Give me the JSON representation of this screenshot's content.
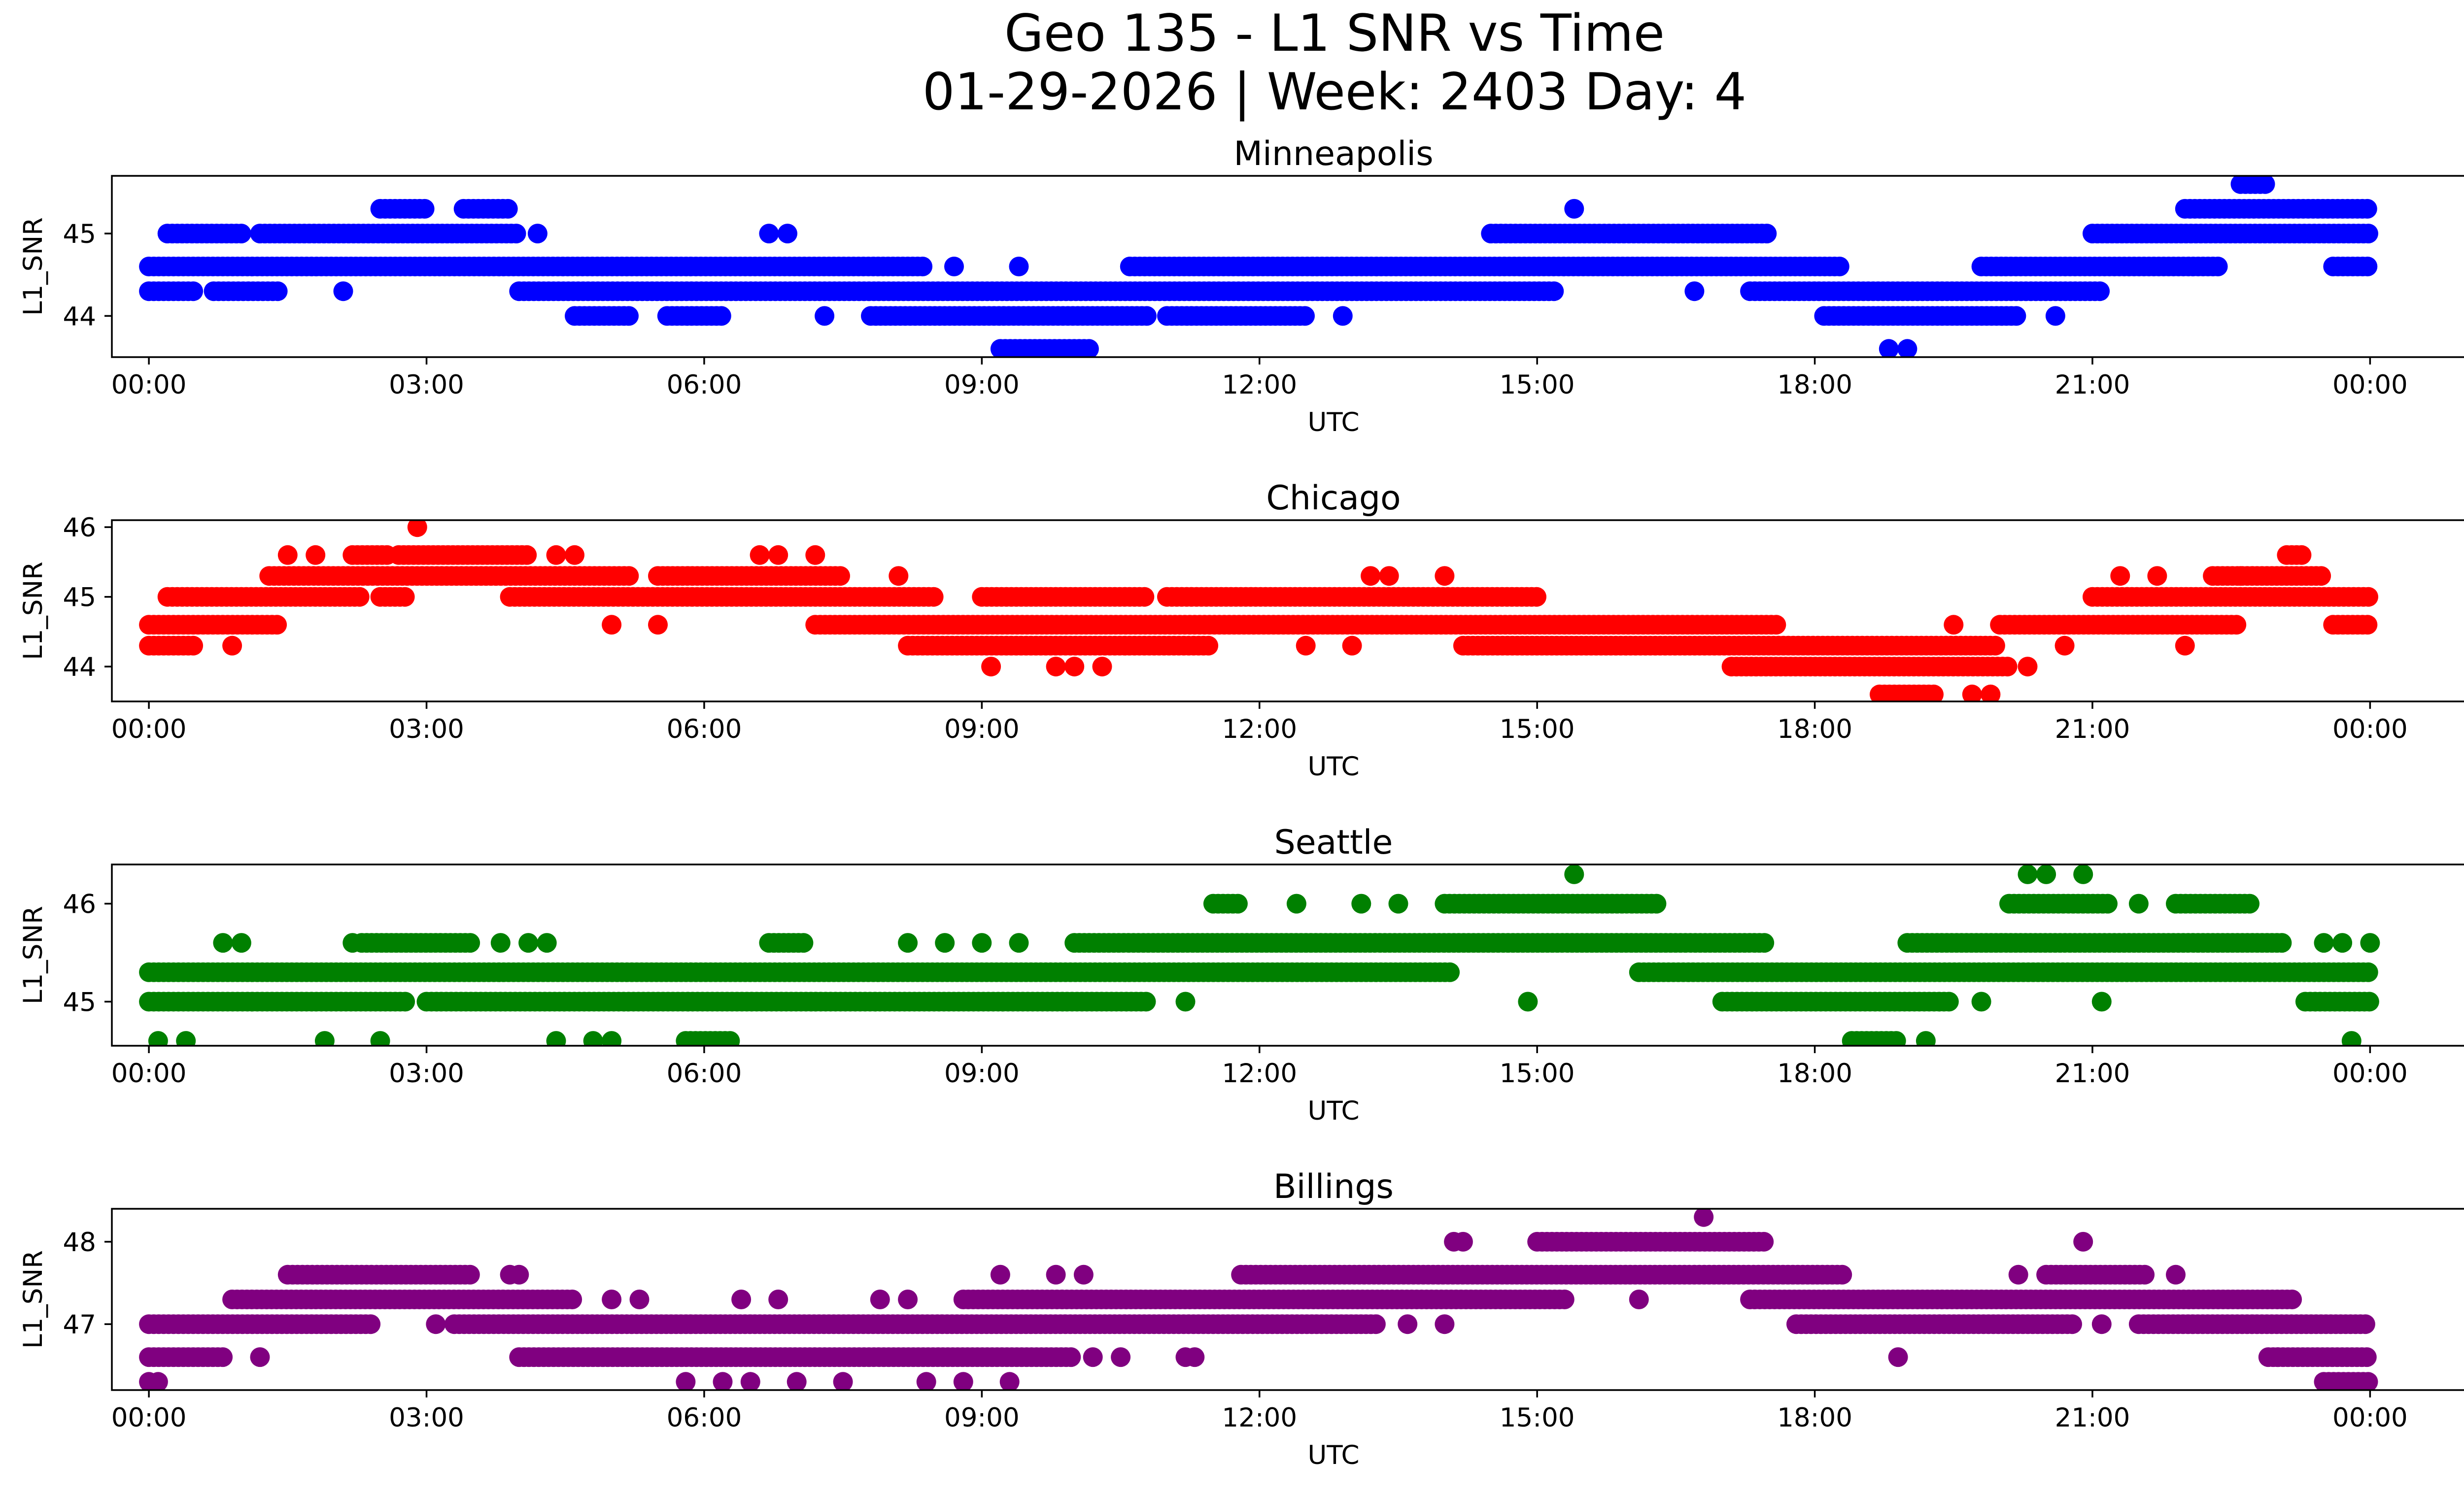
{
  "figure": {
    "title_line1": "Geo 135 - L1 SNR vs Time",
    "title_line2": "01-29-2026 | Week: 2403 Day: 4"
  },
  "x_tick_labels": [
    "00:00",
    "03:00",
    "06:00",
    "09:00",
    "12:00",
    "15:00",
    "18:00",
    "21:00",
    "00:00"
  ],
  "chart_data": [
    {
      "type": "scatter",
      "title": "Minneapolis",
      "xlabel": "UTC",
      "ylabel": "L1_SNR",
      "color": "#0000ff",
      "xlim": [
        -0.4,
        26.0
      ],
      "ylim": [
        43.5,
        45.7
      ],
      "yticks": [
        44,
        45
      ],
      "segments": [
        {
          "y": 44.6,
          "ranges": [
            [
              0.0,
              8.4
            ],
            [
              10.6,
              18.3
            ],
            [
              19.8,
              22.4
            ],
            [
              23.6,
              24.0
            ]
          ]
        },
        {
          "y": 44.3,
          "ranges": [
            [
              0.0,
              0.5
            ],
            [
              0.7,
              1.4
            ],
            [
              4.0,
              15.2
            ],
            [
              17.3,
              21.1
            ]
          ]
        },
        {
          "y": 45.0,
          "ranges": [
            [
              0.2,
              1.0
            ],
            [
              1.2,
              4.0
            ],
            [
              14.5,
              17.5
            ],
            [
              21.0,
              24.0
            ]
          ]
        },
        {
          "y": 44.0,
          "ranges": [
            [
              4.6,
              5.2
            ],
            [
              5.6,
              6.2
            ],
            [
              7.8,
              10.8
            ],
            [
              11.0,
              12.5
            ],
            [
              18.1,
              20.2
            ]
          ]
        },
        {
          "y": 45.3,
          "ranges": [
            [
              2.5,
              3.0
            ],
            [
              3.4,
              3.9
            ],
            [
              22.0,
              24.0
            ]
          ]
        },
        {
          "y": 43.6,
          "ranges": [
            [
              9.2,
              10.2
            ]
          ]
        },
        {
          "y": 45.6,
          "ranges": [
            [
              22.6,
              22.9
            ]
          ]
        }
      ],
      "points": [
        {
          "x": 4.2,
          "y": 45.0
        },
        {
          "x": 6.7,
          "y": 45.0
        },
        {
          "x": 6.9,
          "y": 45.0
        },
        {
          "x": 2.1,
          "y": 44.3
        },
        {
          "x": 16.7,
          "y": 44.3
        },
        {
          "x": 8.7,
          "y": 44.6
        },
        {
          "x": 9.4,
          "y": 44.6
        },
        {
          "x": 7.3,
          "y": 44.0
        },
        {
          "x": 12.9,
          "y": 44.0
        },
        {
          "x": 20.6,
          "y": 44.0
        },
        {
          "x": 15.4,
          "y": 45.3
        },
        {
          "x": 18.8,
          "y": 43.6
        },
        {
          "x": 19.0,
          "y": 43.6
        }
      ]
    },
    {
      "type": "scatter",
      "title": "Chicago",
      "xlabel": "UTC",
      "ylabel": "L1_SNR",
      "color": "#ff0000",
      "xlim": [
        -0.4,
        26.0
      ],
      "ylim": [
        43.5,
        46.1
      ],
      "yticks": [
        44,
        45,
        46
      ],
      "segments": [
        {
          "y": 44.6,
          "ranges": [
            [
              0.0,
              1.4
            ],
            [
              7.2,
              17.6
            ],
            [
              20.0,
              22.6
            ],
            [
              23.6,
              24.0
            ]
          ]
        },
        {
          "y": 44.3,
          "ranges": [
            [
              0.0,
              0.5
            ],
            [
              8.2,
              11.5
            ],
            [
              14.2,
              20.0
            ]
          ]
        },
        {
          "y": 45.0,
          "ranges": [
            [
              0.2,
              2.3
            ],
            [
              2.5,
              2.8
            ],
            [
              3.9,
              8.5
            ],
            [
              9.0,
              10.8
            ],
            [
              11.0,
              15.0
            ],
            [
              21.0,
              24.0
            ]
          ]
        },
        {
          "y": 45.3,
          "ranges": [
            [
              1.3,
              5.2
            ],
            [
              5.5,
              7.5
            ],
            [
              22.3,
              23.5
            ]
          ]
        },
        {
          "y": 45.6,
          "ranges": [
            [
              2.2,
              2.6
            ],
            [
              2.7,
              4.1
            ],
            [
              23.1,
              23.3
            ]
          ]
        },
        {
          "y": 44.0,
          "ranges": [
            [
              17.1,
              20.1
            ]
          ]
        },
        {
          "y": 43.6,
          "ranges": [
            [
              18.7,
              19.3
            ]
          ]
        }
      ],
      "points": [
        {
          "x": 2.9,
          "y": 46.0
        },
        {
          "x": 0.9,
          "y": 44.3
        },
        {
          "x": 1.5,
          "y": 45.6
        },
        {
          "x": 1.8,
          "y": 45.6
        },
        {
          "x": 4.4,
          "y": 45.6
        },
        {
          "x": 4.6,
          "y": 45.6
        },
        {
          "x": 6.6,
          "y": 45.6
        },
        {
          "x": 6.8,
          "y": 45.6
        },
        {
          "x": 7.2,
          "y": 45.6
        },
        {
          "x": 8.1,
          "y": 45.3
        },
        {
          "x": 13.2,
          "y": 45.3
        },
        {
          "x": 13.4,
          "y": 45.3
        },
        {
          "x": 14.0,
          "y": 45.3
        },
        {
          "x": 5.0,
          "y": 44.6
        },
        {
          "x": 5.5,
          "y": 44.6
        },
        {
          "x": 9.1,
          "y": 44.0
        },
        {
          "x": 9.8,
          "y": 44.0
        },
        {
          "x": 10.0,
          "y": 44.0
        },
        {
          "x": 10.3,
          "y": 44.0
        },
        {
          "x": 12.5,
          "y": 44.3
        },
        {
          "x": 13.0,
          "y": 44.3
        },
        {
          "x": 19.5,
          "y": 44.6
        },
        {
          "x": 19.7,
          "y": 43.6
        },
        {
          "x": 19.9,
          "y": 43.6
        },
        {
          "x": 20.3,
          "y": 44.0
        },
        {
          "x": 20.7,
          "y": 44.3
        },
        {
          "x": 21.3,
          "y": 45.3
        },
        {
          "x": 21.7,
          "y": 45.3
        },
        {
          "x": 22.0,
          "y": 44.3
        },
        {
          "x": 22.6,
          "y": 45.3
        }
      ]
    },
    {
      "type": "scatter",
      "title": "Seattle",
      "xlabel": "UTC",
      "ylabel": "L1_SNR",
      "color": "#008000",
      "xlim": [
        -0.4,
        26.0
      ],
      "ylim": [
        44.55,
        46.4
      ],
      "yticks": [
        45,
        46
      ],
      "segments": [
        {
          "y": 45.3,
          "ranges": [
            [
              0.0,
              14.1
            ],
            [
              16.1,
              24.0
            ]
          ]
        },
        {
          "y": 45.0,
          "ranges": [
            [
              0.0,
              2.8
            ],
            [
              3.0,
              10.8
            ],
            [
              17.0,
              19.5
            ],
            [
              23.3,
              24.0
            ]
          ]
        },
        {
          "y": 45.6,
          "ranges": [
            [
              2.3,
              3.5
            ],
            [
              6.7,
              7.1
            ],
            [
              10.0,
              17.5
            ],
            [
              19.0,
              23.1
            ]
          ]
        },
        {
          "y": 46.0,
          "ranges": [
            [
              11.5,
              11.8
            ],
            [
              14.0,
              16.3
            ],
            [
              20.1,
              21.2
            ],
            [
              21.9,
              22.7
            ]
          ]
        },
        {
          "y": 44.6,
          "ranges": [
            [
              5.8,
              6.3
            ],
            [
              18.4,
              18.9
            ]
          ]
        }
      ],
      "points": [
        {
          "x": 0.8,
          "y": 45.6
        },
        {
          "x": 1.0,
          "y": 45.6
        },
        {
          "x": 2.2,
          "y": 45.6
        },
        {
          "x": 3.8,
          "y": 45.6
        },
        {
          "x": 4.1,
          "y": 45.6
        },
        {
          "x": 4.3,
          "y": 45.6
        },
        {
          "x": 8.2,
          "y": 45.6
        },
        {
          "x": 8.6,
          "y": 45.6
        },
        {
          "x": 9.0,
          "y": 45.6
        },
        {
          "x": 9.4,
          "y": 45.6
        },
        {
          "x": 0.1,
          "y": 44.6
        },
        {
          "x": 0.4,
          "y": 44.6
        },
        {
          "x": 1.9,
          "y": 44.6
        },
        {
          "x": 2.5,
          "y": 44.6
        },
        {
          "x": 4.4,
          "y": 44.6
        },
        {
          "x": 4.8,
          "y": 44.6
        },
        {
          "x": 5.0,
          "y": 44.6
        },
        {
          "x": 11.2,
          "y": 45.0
        },
        {
          "x": 14.9,
          "y": 45.0
        },
        {
          "x": 12.4,
          "y": 46.0
        },
        {
          "x": 13.1,
          "y": 46.0
        },
        {
          "x": 13.5,
          "y": 46.0
        },
        {
          "x": 15.4,
          "y": 46.3
        },
        {
          "x": 20.3,
          "y": 46.3
        },
        {
          "x": 20.5,
          "y": 46.3
        },
        {
          "x": 20.9,
          "y": 46.3
        },
        {
          "x": 21.5,
          "y": 46.0
        },
        {
          "x": 19.2,
          "y": 44.6
        },
        {
          "x": 19.8,
          "y": 45.0
        },
        {
          "x": 21.1,
          "y": 45.0
        },
        {
          "x": 23.8,
          "y": 44.6
        },
        {
          "x": 23.5,
          "y": 45.6
        },
        {
          "x": 23.7,
          "y": 45.6
        },
        {
          "x": 24.0,
          "y": 45.6
        }
      ]
    },
    {
      "type": "scatter",
      "title": "Billings",
      "xlabel": "UTC",
      "ylabel": "L1_SNR",
      "color": "#800080",
      "xlim": [
        -0.4,
        26.0
      ],
      "ylim": [
        46.2,
        48.4
      ],
      "yticks": [
        47,
        48
      ],
      "segments": [
        {
          "y": 47.0,
          "ranges": [
            [
              0.0,
              2.4
            ],
            [
              3.3,
              13.3
            ],
            [
              17.8,
              20.8
            ],
            [
              21.5,
              24.0
            ]
          ]
        },
        {
          "y": 46.6,
          "ranges": [
            [
              0.0,
              0.8
            ],
            [
              4.0,
              10.0
            ],
            [
              22.9,
              24.0
            ]
          ]
        },
        {
          "y": 47.3,
          "ranges": [
            [
              0.9,
              4.6
            ],
            [
              8.8,
              15.3
            ],
            [
              17.3,
              23.2
            ]
          ]
        },
        {
          "y": 47.6,
          "ranges": [
            [
              1.5,
              3.5
            ],
            [
              11.8,
              18.3
            ],
            [
              20.5,
              21.6
            ]
          ]
        },
        {
          "y": 48.0,
          "ranges": [
            [
              15.0,
              17.5
            ]
          ]
        },
        {
          "y": 46.3,
          "ranges": [
            [
              23.5,
              24.0
            ]
          ]
        }
      ],
      "points": [
        {
          "x": 0.0,
          "y": 46.3
        },
        {
          "x": 0.1,
          "y": 46.3
        },
        {
          "x": 1.2,
          "y": 46.6
        },
        {
          "x": 3.1,
          "y": 47.0
        },
        {
          "x": 3.9,
          "y": 47.6
        },
        {
          "x": 4.0,
          "y": 47.6
        },
        {
          "x": 5.0,
          "y": 47.3
        },
        {
          "x": 5.3,
          "y": 47.3
        },
        {
          "x": 5.8,
          "y": 46.3
        },
        {
          "x": 6.2,
          "y": 46.3
        },
        {
          "x": 6.5,
          "y": 46.3
        },
        {
          "x": 7.0,
          "y": 46.3
        },
        {
          "x": 7.5,
          "y": 46.3
        },
        {
          "x": 8.4,
          "y": 46.3
        },
        {
          "x": 8.8,
          "y": 46.3
        },
        {
          "x": 9.3,
          "y": 46.3
        },
        {
          "x": 6.4,
          "y": 47.3
        },
        {
          "x": 6.8,
          "y": 47.3
        },
        {
          "x": 7.9,
          "y": 47.3
        },
        {
          "x": 8.2,
          "y": 47.3
        },
        {
          "x": 9.2,
          "y": 47.6
        },
        {
          "x": 9.8,
          "y": 47.6
        },
        {
          "x": 10.1,
          "y": 47.6
        },
        {
          "x": 10.2,
          "y": 46.6
        },
        {
          "x": 10.5,
          "y": 46.6
        },
        {
          "x": 11.2,
          "y": 46.6
        },
        {
          "x": 11.3,
          "y": 46.6
        },
        {
          "x": 14.1,
          "y": 48.0
        },
        {
          "x": 14.2,
          "y": 48.0
        },
        {
          "x": 16.1,
          "y": 47.3
        },
        {
          "x": 16.8,
          "y": 48.3
        },
        {
          "x": 18.9,
          "y": 46.6
        },
        {
          "x": 20.9,
          "y": 48.0
        },
        {
          "x": 20.2,
          "y": 47.6
        },
        {
          "x": 21.9,
          "y": 47.6
        },
        {
          "x": 23.0,
          "y": 46.6
        },
        {
          "x": 13.6,
          "y": 47.0
        },
        {
          "x": 14.0,
          "y": 47.0
        },
        {
          "x": 21.1,
          "y": 47.0
        }
      ]
    }
  ]
}
